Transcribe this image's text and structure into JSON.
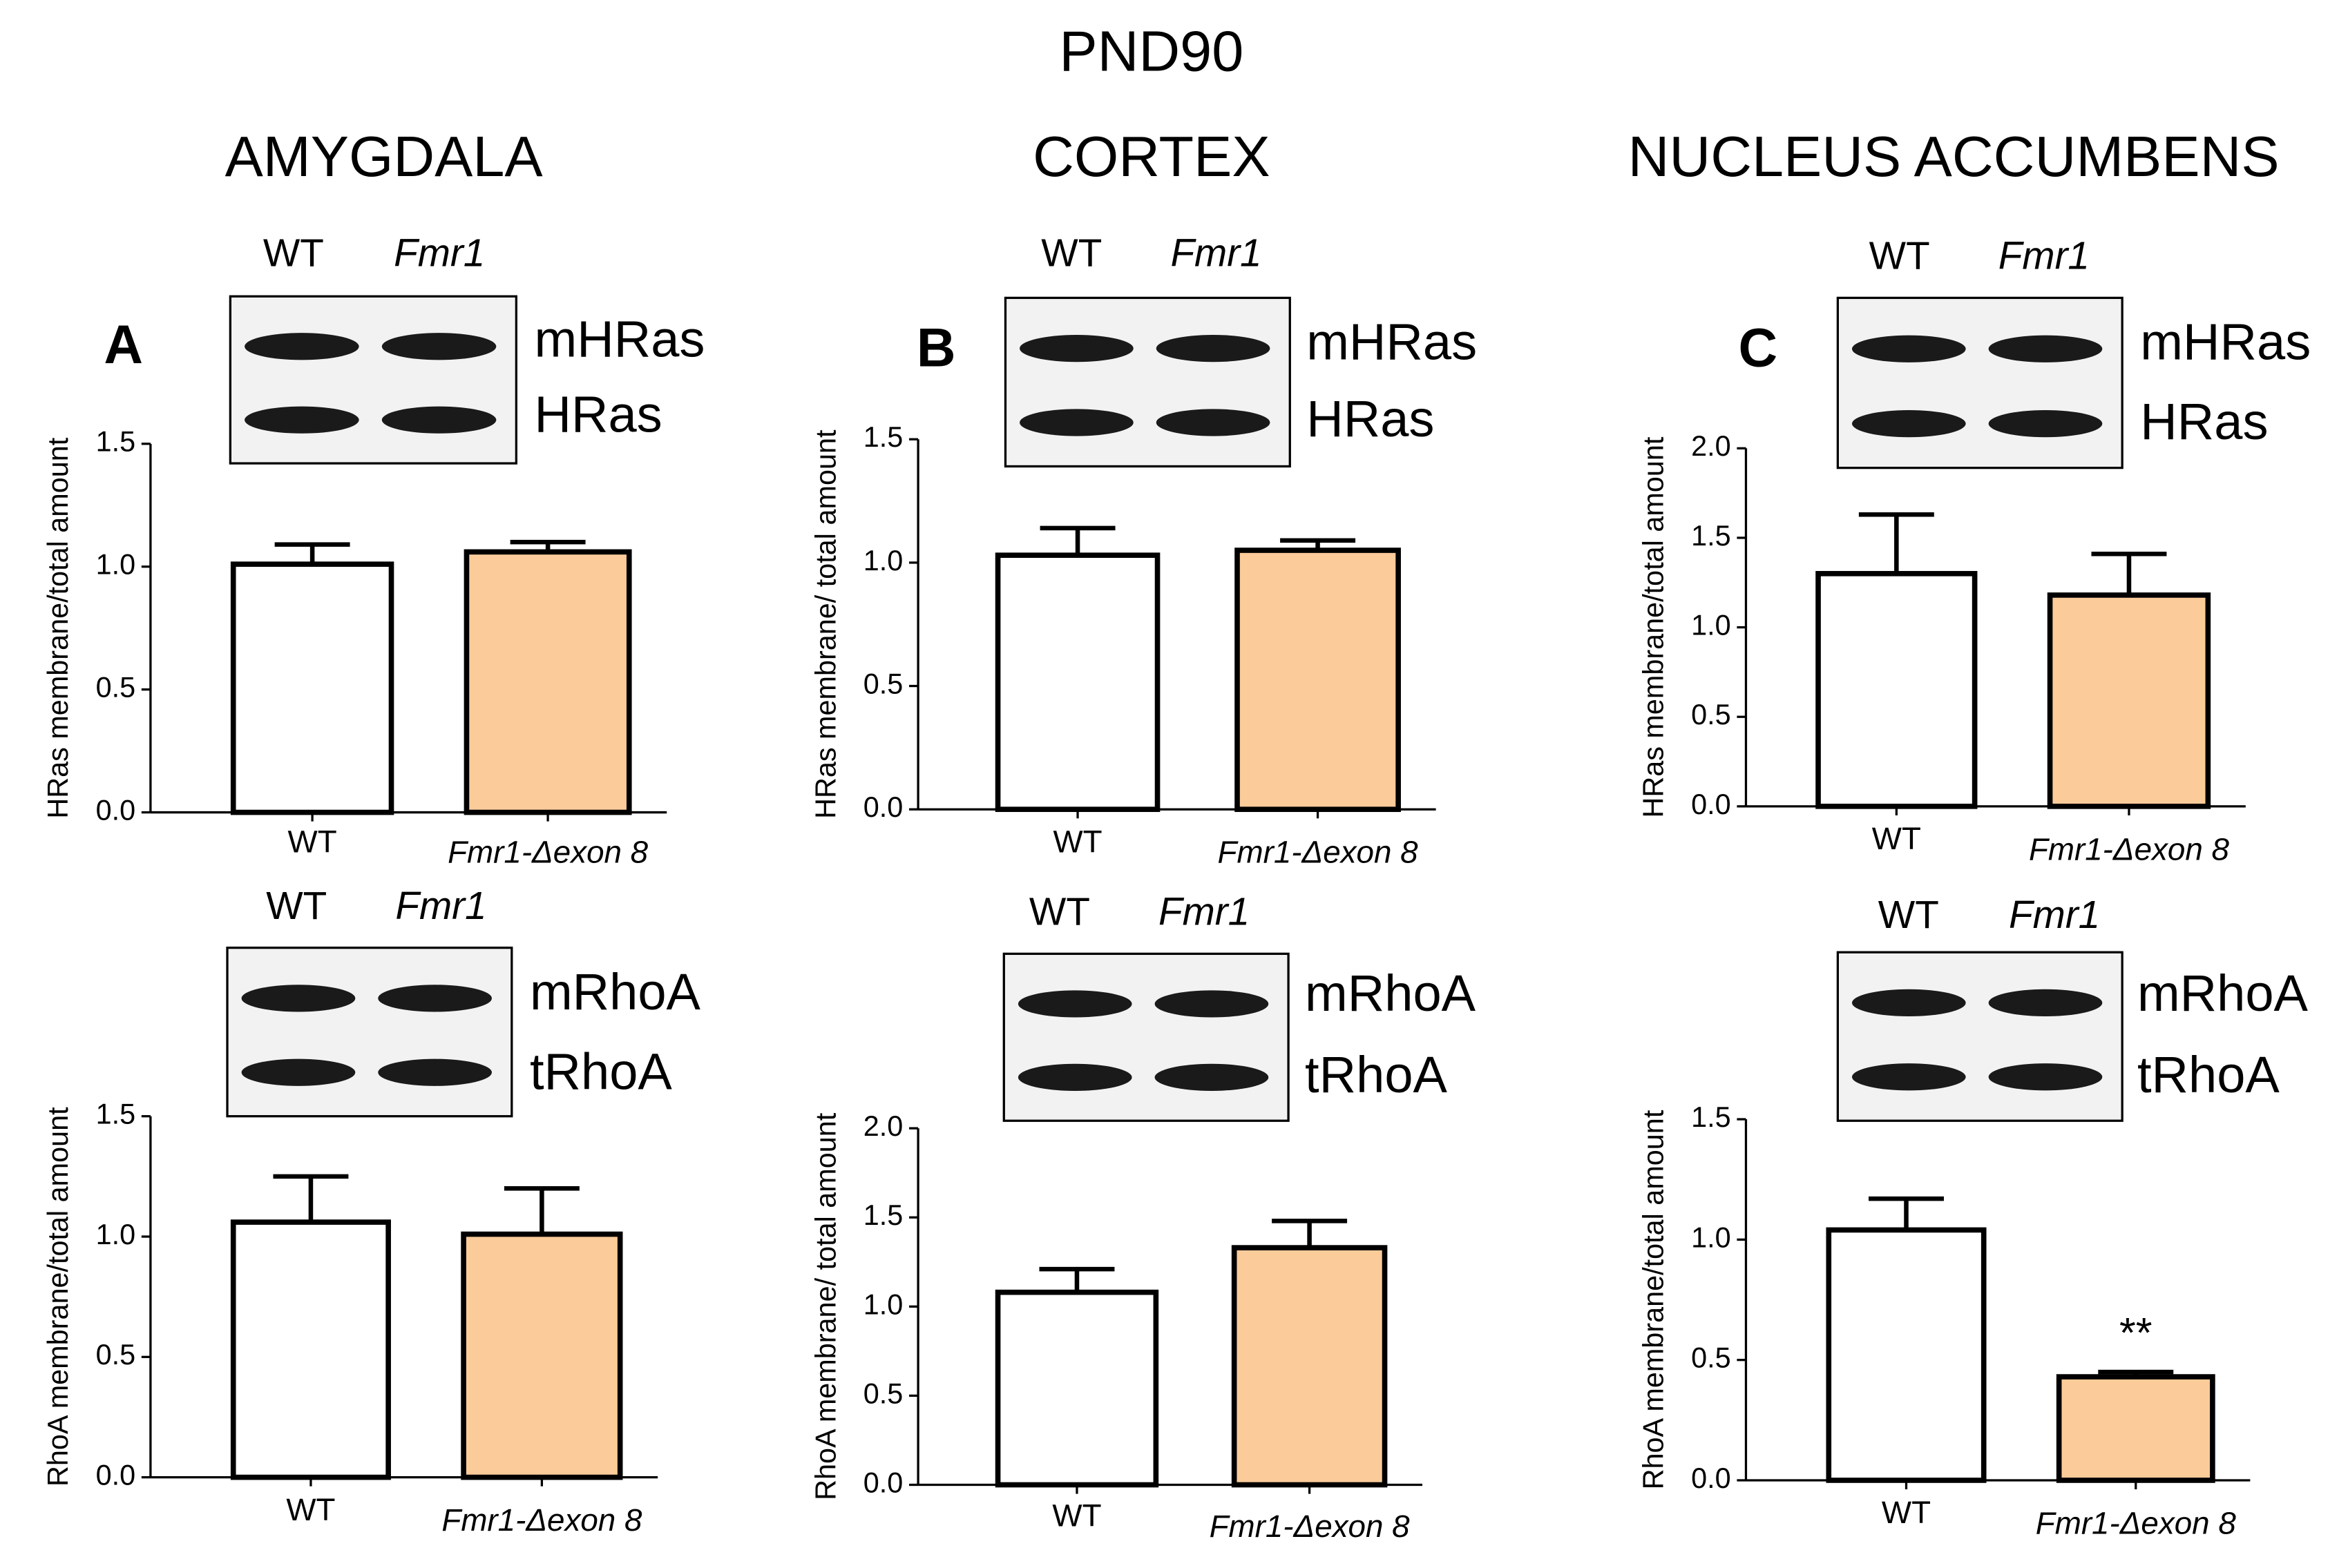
{
  "title": "PND90",
  "regions": [
    "AMYGDALA",
    "CORTEX",
    "NUCLEUS ACCUMBENS"
  ],
  "panels": [
    "A",
    "B",
    "C"
  ],
  "blots": [
    {
      "lanes": [
        "WT",
        "Fmr1"
      ],
      "rows": [
        "mHRas",
        "HRas"
      ]
    },
    {
      "lanes": [
        "WT",
        "Fmr1"
      ],
      "rows": [
        "mHRas",
        "HRas"
      ]
    },
    {
      "lanes": [
        "WT",
        "Fmr1"
      ],
      "rows": [
        "mHRas",
        "HRas"
      ]
    },
    {
      "lanes": [
        "WT",
        "Fmr1"
      ],
      "rows": [
        "mRhoA",
        "tRhoA"
      ]
    },
    {
      "lanes": [
        "WT",
        "Fmr1"
      ],
      "rows": [
        "mRhoA",
        "tRhoA"
      ]
    },
    {
      "lanes": [
        "WT",
        "Fmr1"
      ],
      "rows": [
        "mRhoA",
        "tRhoA"
      ]
    }
  ],
  "chart_data": [
    {
      "type": "bar",
      "ylabel": "HRas membrane/total amount",
      "categories": [
        "WT",
        "Fmr1-Δexon 8"
      ],
      "values": [
        1.01,
        1.06
      ],
      "errors": [
        0.08,
        0.04
      ],
      "colors": [
        "#ffffff",
        "#fbcb9a"
      ],
      "ylim": [
        0,
        1.5
      ],
      "yticks": [
        {
          "value": 0,
          "label": "0.0"
        },
        {
          "value": 0.5,
          "label": "0.5"
        },
        {
          "value": 1,
          "label": "1.0"
        },
        {
          "value": 1.5,
          "label": "1.5"
        }
      ]
    },
    {
      "type": "bar",
      "ylabel": "HRas membrane/ total amount",
      "categories": [
        "WT",
        "Fmr1-Δexon 8"
      ],
      "values": [
        1.03,
        1.05
      ],
      "errors": [
        0.11,
        0.04
      ],
      "colors": [
        "#ffffff",
        "#fbcb9a"
      ],
      "ylim": [
        0,
        1.5
      ],
      "yticks": [
        {
          "value": 0,
          "label": "0.0"
        },
        {
          "value": 0.5,
          "label": "0.5"
        },
        {
          "value": 1,
          "label": "1.0"
        },
        {
          "value": 1.5,
          "label": "1.5"
        }
      ]
    },
    {
      "type": "bar",
      "ylabel": "HRas membrane/total amount",
      "categories": [
        "WT",
        "Fmr1-Δexon 8"
      ],
      "values": [
        1.3,
        1.18
      ],
      "errors": [
        0.33,
        0.23
      ],
      "colors": [
        "#ffffff",
        "#fbcb9a"
      ],
      "ylim": [
        0,
        2
      ],
      "yticks": [
        {
          "value": 0,
          "label": "0.0"
        },
        {
          "value": 0.5,
          "label": "0.5"
        },
        {
          "value": 1,
          "label": "1.0"
        },
        {
          "value": 1.5,
          "label": "1.5"
        },
        {
          "value": 2,
          "label": "2.0"
        }
      ]
    },
    {
      "type": "bar",
      "ylabel": "RhoA membrane/total amount",
      "categories": [
        "WT",
        "Fmr1-Δexon 8"
      ],
      "values": [
        1.06,
        1.01
      ],
      "errors": [
        0.19,
        0.19
      ],
      "colors": [
        "#ffffff",
        "#fbcb9a"
      ],
      "ylim": [
        0,
        1.5
      ],
      "yticks": [
        {
          "value": 0,
          "label": "0.0"
        },
        {
          "value": 0.5,
          "label": "0.5"
        },
        {
          "value": 1,
          "label": "1.0"
        },
        {
          "value": 1.5,
          "label": "1.5"
        }
      ]
    },
    {
      "type": "bar",
      "ylabel": "RhoA membrane/ total amount",
      "categories": [
        "WT",
        "Fmr1-Δexon 8"
      ],
      "values": [
        1.08,
        1.33
      ],
      "errors": [
        0.13,
        0.15
      ],
      "colors": [
        "#ffffff",
        "#fbcb9a"
      ],
      "ylim": [
        0,
        2
      ],
      "yticks": [
        {
          "value": 0,
          "label": "0.0"
        },
        {
          "value": 0.5,
          "label": "0.5"
        },
        {
          "value": 1,
          "label": "1.0"
        },
        {
          "value": 1.5,
          "label": "1.5"
        },
        {
          "value": 2,
          "label": "2.0"
        }
      ]
    },
    {
      "type": "bar",
      "ylabel": "RhoA membrane/total amount",
      "categories": [
        "WT",
        "Fmr1-Δexon 8"
      ],
      "values": [
        1.04,
        0.43
      ],
      "errors": [
        0.13,
        0.02
      ],
      "colors": [
        "#ffffff",
        "#fbcb9a"
      ],
      "ylim": [
        0,
        1.5
      ],
      "yticks": [
        {
          "value": 0,
          "label": "0.0"
        },
        {
          "value": 0.5,
          "label": "0.5"
        },
        {
          "value": 1,
          "label": "1.0"
        },
        {
          "value": 1.5,
          "label": "1.5"
        }
      ],
      "annotations": [
        "",
        "**"
      ]
    }
  ]
}
